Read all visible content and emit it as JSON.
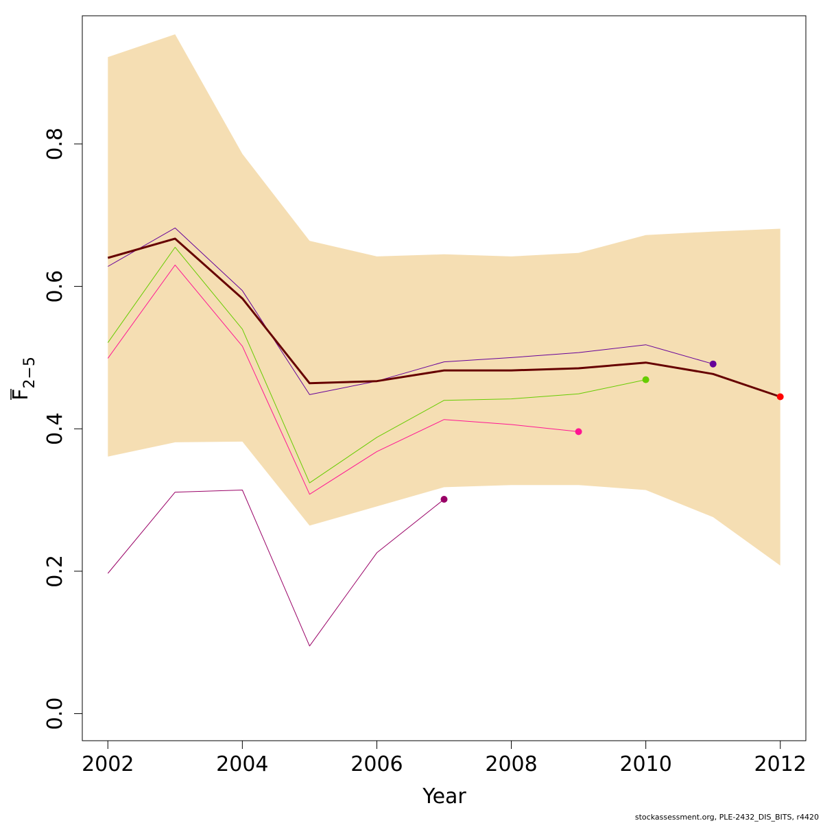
{
  "chart_data": {
    "type": "line",
    "xlabel": "Year",
    "ylabel": {
      "main": "F",
      "subscript": "2−5"
    },
    "xlim": [
      2001.62,
      2012.38
    ],
    "ylim": [
      -0.038,
      0.98
    ],
    "x_ticks": [
      "2002",
      "2004",
      "2006",
      "2008",
      "2010",
      "2012"
    ],
    "x_tick_values": [
      2002,
      2004,
      2006,
      2008,
      2010,
      2012
    ],
    "y_ticks": [
      "0.0",
      "0.2",
      "0.4",
      "0.6",
      "0.8"
    ],
    "y_tick_values": [
      0.0,
      0.2,
      0.4,
      0.6,
      0.8
    ],
    "grid": false,
    "confidence_band": {
      "color": "#f5deb3",
      "x": [
        2002,
        2003,
        2004,
        2005,
        2006,
        2007,
        2008,
        2009,
        2010,
        2011,
        2012
      ],
      "upper": [
        0.922,
        0.954,
        0.786,
        0.664,
        0.642,
        0.645,
        0.642,
        0.647,
        0.672,
        0.677,
        0.681
      ],
      "lower": [
        0.361,
        0.381,
        0.382,
        0.264,
        0.291,
        0.318,
        0.321,
        0.321,
        0.314,
        0.276,
        0.208
      ]
    },
    "series": [
      {
        "color": "#990066",
        "width": 1,
        "x": [
          2002,
          2003,
          2004,
          2005,
          2006,
          2007
        ],
        "y": [
          0.197,
          0.311,
          0.314,
          0.095,
          0.226,
          0.301
        ],
        "end_marker": true
      },
      {
        "color": "#ff1493",
        "width": 1,
        "x": [
          2002,
          2003,
          2004,
          2005,
          2006,
          2007,
          2008,
          2009
        ],
        "y": [
          0.499,
          0.63,
          0.516,
          0.308,
          0.368,
          0.413,
          0.406,
          0.396
        ],
        "end_marker": true
      },
      {
        "color": "#66cc00",
        "width": 1,
        "x": [
          2002,
          2003,
          2004,
          2005,
          2006,
          2007,
          2008,
          2009,
          2010
        ],
        "y": [
          0.521,
          0.655,
          0.54,
          0.324,
          0.388,
          0.44,
          0.442,
          0.449,
          0.469
        ],
        "end_marker": true
      },
      {
        "color": "#660099",
        "width": 1,
        "x": [
          2002,
          2003,
          2004,
          2005,
          2006,
          2007,
          2008,
          2009,
          2010,
          2011
        ],
        "y": [
          0.628,
          0.682,
          0.594,
          0.448,
          0.467,
          0.494,
          0.5,
          0.507,
          0.518,
          0.491
        ],
        "end_marker": true
      },
      {
        "color": "#660000",
        "width": 3,
        "x": [
          2002,
          2003,
          2004,
          2005,
          2006,
          2007,
          2008,
          2009,
          2010,
          2011,
          2012
        ],
        "y": [
          0.64,
          0.667,
          0.583,
          0.464,
          0.467,
          0.482,
          0.482,
          0.485,
          0.493,
          0.477,
          0.445
        ],
        "end_marker": true,
        "end_marker_color": "#ff0000"
      }
    ]
  },
  "footnote": "stockassessment.org, PLE-2432_DIS_BITS, r4420"
}
